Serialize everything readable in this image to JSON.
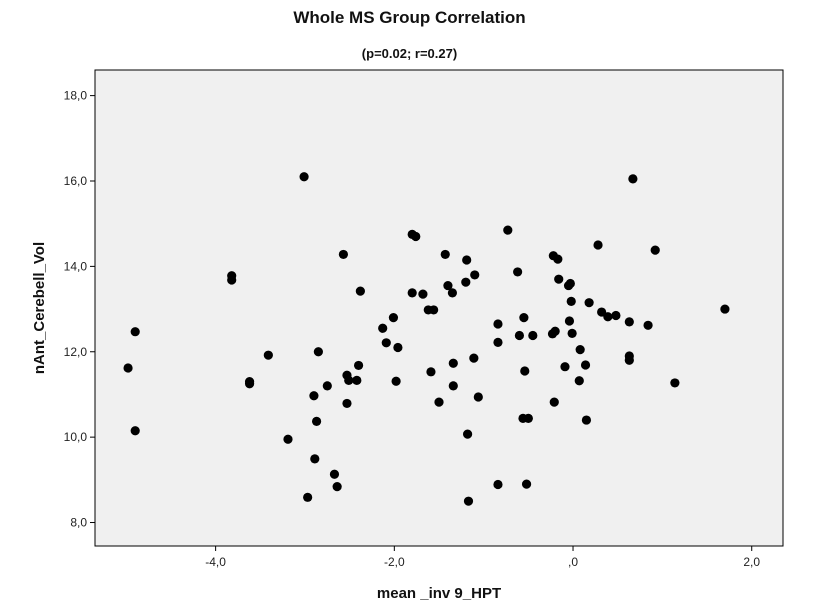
{
  "chart_data": {
    "type": "scatter",
    "title": "Whole MS Group Correlation",
    "subtitle": "(p=0.02; r=0.27)",
    "xlabel": "mean _inv 9_HPT",
    "ylabel": "nAnt_Cerebell_Vol",
    "xlim": [
      -5.35,
      2.35
    ],
    "ylim": [
      7.45,
      18.6
    ],
    "xticks": [
      -4.0,
      -2.0,
      0.0,
      2.0
    ],
    "xtick_labels": [
      "-4,0",
      "-2,0",
      ",0",
      "2,0"
    ],
    "yticks": [
      8.0,
      10.0,
      12.0,
      14.0,
      16.0,
      18.0
    ],
    "ytick_labels": [
      "8,0",
      "10,0",
      "12,0",
      "14,0",
      "16,0",
      "18,0"
    ],
    "grid": false,
    "plot_background": "#f0f0f0",
    "point_color": "#000000",
    "points": [
      {
        "x": -4.98,
        "y": 11.62
      },
      {
        "x": -4.9,
        "y": 12.47
      },
      {
        "x": -4.9,
        "y": 10.15
      },
      {
        "x": -3.82,
        "y": 13.78
      },
      {
        "x": -3.82,
        "y": 13.68
      },
      {
        "x": -3.62,
        "y": 11.3
      },
      {
        "x": -3.62,
        "y": 11.25
      },
      {
        "x": -3.41,
        "y": 11.92
      },
      {
        "x": -3.19,
        "y": 9.95
      },
      {
        "x": -3.01,
        "y": 16.1
      },
      {
        "x": -2.97,
        "y": 8.59
      },
      {
        "x": -2.9,
        "y": 10.97
      },
      {
        "x": -2.89,
        "y": 9.49
      },
      {
        "x": -2.87,
        "y": 10.37
      },
      {
        "x": -2.85,
        "y": 12.0
      },
      {
        "x": -2.75,
        "y": 11.2
      },
      {
        "x": -2.67,
        "y": 9.13
      },
      {
        "x": -2.64,
        "y": 8.84
      },
      {
        "x": -2.57,
        "y": 14.28
      },
      {
        "x": -2.53,
        "y": 11.45
      },
      {
        "x": -2.53,
        "y": 10.79
      },
      {
        "x": -2.51,
        "y": 11.33
      },
      {
        "x": -2.42,
        "y": 11.33
      },
      {
        "x": -2.4,
        "y": 11.68
      },
      {
        "x": -2.38,
        "y": 13.42
      },
      {
        "x": -2.13,
        "y": 12.55
      },
      {
        "x": -2.09,
        "y": 12.21
      },
      {
        "x": -2.01,
        "y": 12.8
      },
      {
        "x": -1.98,
        "y": 11.31
      },
      {
        "x": -1.96,
        "y": 12.1
      },
      {
        "x": -1.8,
        "y": 13.38
      },
      {
        "x": -1.8,
        "y": 14.75
      },
      {
        "x": -1.76,
        "y": 14.7
      },
      {
        "x": -1.68,
        "y": 13.35
      },
      {
        "x": -1.62,
        "y": 12.98
      },
      {
        "x": -1.59,
        "y": 11.53
      },
      {
        "x": -1.56,
        "y": 12.98
      },
      {
        "x": -1.5,
        "y": 10.82
      },
      {
        "x": -1.43,
        "y": 14.28
      },
      {
        "x": -1.4,
        "y": 13.55
      },
      {
        "x": -1.35,
        "y": 13.38
      },
      {
        "x": -1.34,
        "y": 11.73
      },
      {
        "x": -1.34,
        "y": 11.2
      },
      {
        "x": -1.2,
        "y": 13.63
      },
      {
        "x": -1.19,
        "y": 14.15
      },
      {
        "x": -1.18,
        "y": 10.07
      },
      {
        "x": -1.17,
        "y": 8.5
      },
      {
        "x": -1.11,
        "y": 11.85
      },
      {
        "x": -1.1,
        "y": 13.8
      },
      {
        "x": -1.06,
        "y": 10.94
      },
      {
        "x": -0.84,
        "y": 12.65
      },
      {
        "x": -0.84,
        "y": 12.22
      },
      {
        "x": -0.84,
        "y": 8.89
      },
      {
        "x": -0.73,
        "y": 14.85
      },
      {
        "x": -0.62,
        "y": 13.87
      },
      {
        "x": -0.6,
        "y": 12.38
      },
      {
        "x": -0.56,
        "y": 10.44
      },
      {
        "x": -0.55,
        "y": 12.8
      },
      {
        "x": -0.54,
        "y": 11.55
      },
      {
        "x": -0.52,
        "y": 8.9
      },
      {
        "x": -0.5,
        "y": 10.44
      },
      {
        "x": -0.45,
        "y": 12.38
      },
      {
        "x": -0.23,
        "y": 12.42
      },
      {
        "x": -0.22,
        "y": 14.25
      },
      {
        "x": -0.21,
        "y": 10.82
      },
      {
        "x": -0.2,
        "y": 12.48
      },
      {
        "x": -0.17,
        "y": 14.17
      },
      {
        "x": -0.16,
        "y": 13.7
      },
      {
        "x": -0.09,
        "y": 11.65
      },
      {
        "x": -0.05,
        "y": 13.55
      },
      {
        "x": -0.04,
        "y": 12.72
      },
      {
        "x": -0.03,
        "y": 13.6
      },
      {
        "x": -0.02,
        "y": 13.18
      },
      {
        "x": -0.01,
        "y": 12.43
      },
      {
        "x": 0.07,
        "y": 11.32
      },
      {
        "x": 0.08,
        "y": 12.05
      },
      {
        "x": 0.14,
        "y": 11.69
      },
      {
        "x": 0.15,
        "y": 10.4
      },
      {
        "x": 0.18,
        "y": 13.15
      },
      {
        "x": 0.28,
        "y": 14.5
      },
      {
        "x": 0.32,
        "y": 12.93
      },
      {
        "x": 0.39,
        "y": 12.82
      },
      {
        "x": 0.48,
        "y": 12.85
      },
      {
        "x": 0.63,
        "y": 12.7
      },
      {
        "x": 0.63,
        "y": 11.9
      },
      {
        "x": 0.63,
        "y": 11.8
      },
      {
        "x": 0.67,
        "y": 16.05
      },
      {
        "x": 0.84,
        "y": 12.62
      },
      {
        "x": 0.92,
        "y": 14.38
      },
      {
        "x": 1.14,
        "y": 11.27
      },
      {
        "x": 1.7,
        "y": 13.0
      }
    ]
  }
}
